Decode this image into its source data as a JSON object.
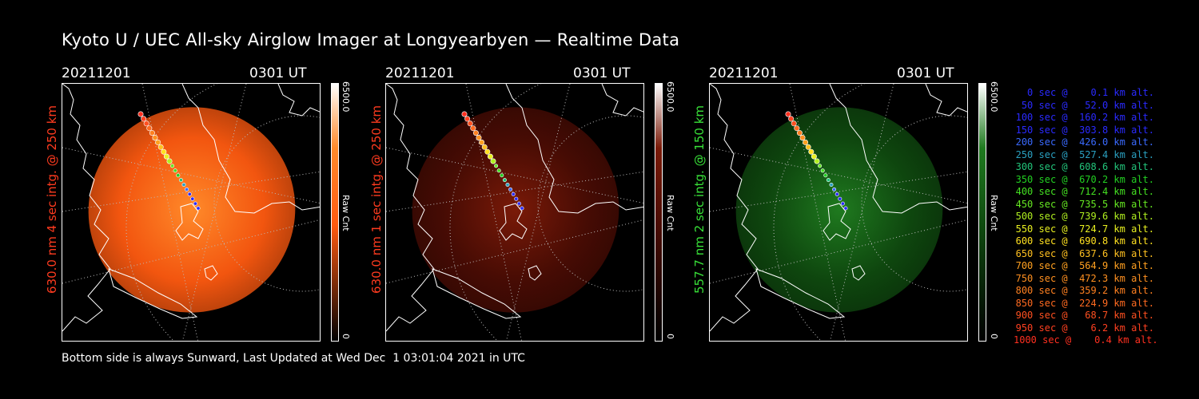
{
  "title": "Kyoto U / UEC All-sky Airglow Imager at Longyearbyen — Realtime Data",
  "panels": [
    {
      "date": "20211201",
      "time": "0301 UT",
      "ylabel": "630.0 nm 4 sec intg. @ 250 km",
      "label_color": "#ff3b1f",
      "cbar_max": "6500.0",
      "cbar_min": "0",
      "cbar_unit": "Raw Cnt",
      "tint": "#ff5a10",
      "glow": "#ff8a2a"
    },
    {
      "date": "20211201",
      "time": "0301 UT",
      "ylabel": "630.0 nm 1 sec intg. @ 250 km",
      "label_color": "#ff3b1f",
      "cbar_max": "6500.0",
      "cbar_min": "0",
      "cbar_unit": "Raw Cnt",
      "tint": "#4a0c04",
      "glow": "#7a1a08"
    },
    {
      "date": "20211201",
      "time": "0301 UT",
      "ylabel": "557.7 nm 2 sec intg. @ 150 km",
      "label_color": "#38e038",
      "cbar_max": "6500.0",
      "cbar_min": "0",
      "cbar_unit": "Raw Cnt",
      "tint": "#0f4a0f",
      "glow": "#1f7a1f"
    }
  ],
  "legend": [
    {
      "text": "0 sec @    0.1 km alt.",
      "color": "#2a2aff"
    },
    {
      "text": "50 sec @   52.0 km alt.",
      "color": "#2a2aff"
    },
    {
      "text": "100 sec @  160.2 km alt.",
      "color": "#2a2aff"
    },
    {
      "text": "150 sec @  303.8 km alt.",
      "color": "#2a2aff"
    },
    {
      "text": "200 sec @  426.0 km alt.",
      "color": "#3a6aff"
    },
    {
      "text": "250 sec @  527.4 km alt.",
      "color": "#2aa0c0"
    },
    {
      "text": "300 sec @  608.6 km alt.",
      "color": "#22c47a"
    },
    {
      "text": "350 sec @  670.2 km alt.",
      "color": "#22d022"
    },
    {
      "text": "400 sec @  712.4 km alt.",
      "color": "#44e022"
    },
    {
      "text": "450 sec @  735.5 km alt.",
      "color": "#66e822"
    },
    {
      "text": "500 sec @  739.6 km alt.",
      "color": "#b0f020"
    },
    {
      "text": "550 sec @  724.7 km alt.",
      "color": "#e8f020"
    },
    {
      "text": "600 sec @  690.8 km alt.",
      "color": "#ffe020"
    },
    {
      "text": "650 sec @  637.6 km alt.",
      "color": "#ffc020"
    },
    {
      "text": "700 sec @  564.9 km alt.",
      "color": "#ffa020"
    },
    {
      "text": "750 sec @  472.3 km alt.",
      "color": "#ff9020"
    },
    {
      "text": "800 sec @  359.2 km alt.",
      "color": "#ff8020"
    },
    {
      "text": "850 sec @  224.9 km alt.",
      "color": "#ff6a20"
    },
    {
      "text": "900 sec @   68.7 km alt.",
      "color": "#ff5020"
    },
    {
      "text": "950 sec @    6.2 km alt.",
      "color": "#ff4020"
    },
    {
      "text": "1000 sec @    0.4 km alt.",
      "color": "#ff3020"
    }
  ],
  "footer": "Bottom side is always Sunward, Last Updated at Wed Dec  1 03:01:04 2021 in UTC"
}
